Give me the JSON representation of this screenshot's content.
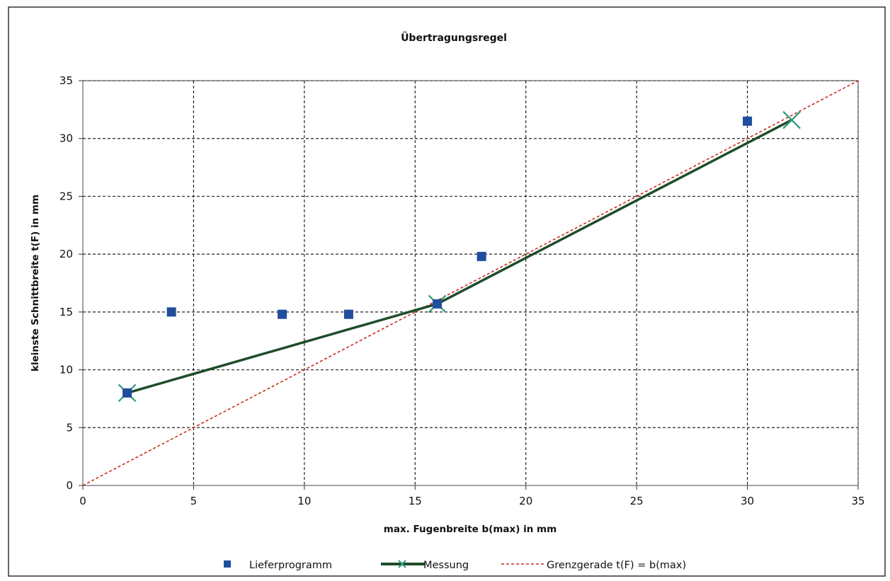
{
  "chart_data": {
    "type": "scatter",
    "title": "Übertragungsregel",
    "xlabel": "max. Fugenbreite b(max) in mm",
    "ylabel": "kleinste Schnittbreite t(F) in mm",
    "xlim": [
      0,
      35
    ],
    "ylim": [
      0,
      35
    ],
    "xticks": [
      "0",
      "5",
      "10",
      "15",
      "20",
      "25",
      "30",
      "35"
    ],
    "yticks": [
      "0",
      "5",
      "10",
      "15",
      "20",
      "25",
      "30",
      "35"
    ],
    "grid": true,
    "legend_position": "bottom",
    "series": [
      {
        "name": "Lieferprogramm",
        "kind": "scatter",
        "marker": "square",
        "color": "#1f4e9c",
        "points": [
          [
            2,
            8
          ],
          [
            4,
            15
          ],
          [
            9,
            14.8
          ],
          [
            12,
            14.8
          ],
          [
            16,
            15.7
          ],
          [
            18,
            19.8
          ],
          [
            30,
            31.5
          ]
        ]
      },
      {
        "name": "Messung",
        "kind": "line",
        "marker": "x",
        "color": "#1e4d2b",
        "marker_color": "#2e9b7a",
        "points": [
          [
            2,
            8
          ],
          [
            16,
            15.7
          ],
          [
            32,
            31.6
          ]
        ]
      },
      {
        "name": "Grenzgerade t(F) = b(max)",
        "kind": "line",
        "style": "dashed",
        "color": "#cc2b1e",
        "points": [
          [
            0,
            0
          ],
          [
            35,
            35
          ]
        ]
      }
    ]
  }
}
